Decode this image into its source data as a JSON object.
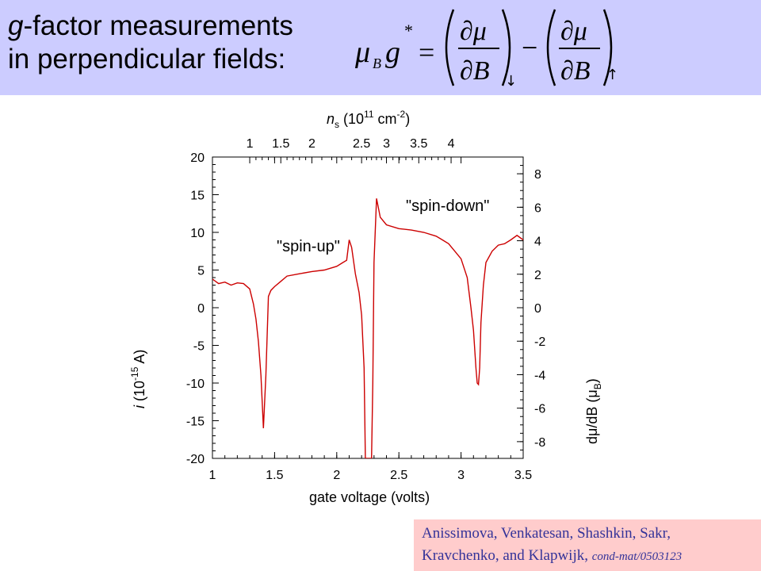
{
  "header": {
    "title_italic": "g",
    "title_line1_rest": "-factor measurements",
    "title_line2": "in perpendicular fields:",
    "background": "#ccccff"
  },
  "formula": {
    "lhs_mu": "μ",
    "lhs_sub": "B",
    "lhs_g": "g",
    "lhs_sup": "*",
    "equals": "=",
    "partial_mu": "∂μ",
    "partial_B": "∂B",
    "minus": "−",
    "down_arrow": "↓",
    "up_arrow": "↑"
  },
  "credit": {
    "authors_line1": "Anissimova, Venkatesan, Shashkin, Sakr,",
    "authors_line2": "Kravchenko, and Klapwijk,",
    "source": "cond-mat/0503123",
    "background": "#ffcccc",
    "text_color": "#333399"
  },
  "chart_data": {
    "type": "line",
    "xlabel": "gate voltage (volts)",
    "xlim": [
      1,
      3.5
    ],
    "x_ticks": [
      "1",
      "1.5",
      "2",
      "2.5",
      "3",
      "3.5"
    ],
    "ylabel_italic": "i",
    "ylabel_rest": " (10",
    "ylabel_exp": "-15",
    "ylabel_unit": " A)",
    "ylim": [
      -20,
      20
    ],
    "y_ticks": [
      "20",
      "15",
      "10",
      "5",
      "0",
      "-5",
      "-10",
      "-15",
      "-20"
    ],
    "top_axis_label_italic": "n",
    "top_axis_label_sub": "s",
    "top_axis_label_rest": " (10",
    "top_axis_label_exp": "11",
    "top_axis_label_unit": " cm",
    "top_axis_label_unit_exp": "-2",
    "top_axis_label_close": ")",
    "top_axis_ticks": [
      "1",
      "1.5",
      "2",
      "2.5",
      "3",
      "3.5",
      "4"
    ],
    "top_axis_positions_volts": [
      1.3,
      1.55,
      1.8,
      2.2,
      2.4,
      2.66,
      2.92
    ],
    "right_axis_label_pre": "dμ/dB (μ",
    "right_axis_label_sub": "B",
    "right_axis_label_post": ")",
    "right_axis_ticks": [
      "8",
      "6",
      "4",
      "2",
      "0",
      "-2",
      "-4",
      "-6",
      "-8"
    ],
    "right_axis_range": [
      -9,
      9
    ],
    "line_color": "#cc0000",
    "annotations": [
      "\"spin-up\"",
      "\"spin-down\""
    ],
    "series": [
      {
        "x": [
          1.0,
          1.05,
          1.1,
          1.15,
          1.2,
          1.25,
          1.3,
          1.33,
          1.35,
          1.37,
          1.39,
          1.41,
          1.43,
          1.45,
          1.47,
          1.5,
          1.55,
          1.6,
          1.7,
          1.8,
          1.9,
          2.0,
          2.05,
          2.08,
          2.1,
          2.12,
          2.15,
          2.18,
          2.2,
          2.22,
          2.23,
          2.24,
          2.28,
          2.29,
          2.3,
          2.32,
          2.35,
          2.4,
          2.5,
          2.6,
          2.7,
          2.8,
          2.85,
          2.9,
          2.95,
          3.0,
          3.05,
          3.08,
          3.1,
          3.12,
          3.13,
          3.14,
          3.15,
          3.16,
          3.18,
          3.2,
          3.25,
          3.3,
          3.35,
          3.4,
          3.45,
          3.5
        ],
        "y": [
          3.8,
          3.2,
          3.4,
          3.0,
          3.3,
          3.2,
          2.5,
          0.5,
          -1.5,
          -4.5,
          -9.0,
          -16.0,
          -9.0,
          1.5,
          2.3,
          2.8,
          3.5,
          4.2,
          4.5,
          4.8,
          5.0,
          5.5,
          6.0,
          6.3,
          9.0,
          8.0,
          4.5,
          2.0,
          -1.0,
          -8.0,
          -20.0,
          -20.0,
          -20.0,
          -10.0,
          6.0,
          14.5,
          12.0,
          11.0,
          10.5,
          10.3,
          10.0,
          9.5,
          9.0,
          8.5,
          7.5,
          6.5,
          4.0,
          0.0,
          -3.0,
          -8.0,
          -10.0,
          -10.2,
          -8.0,
          -2.0,
          3.0,
          6.0,
          7.5,
          8.3,
          8.5,
          9.0,
          9.6,
          9.0
        ]
      }
    ]
  }
}
